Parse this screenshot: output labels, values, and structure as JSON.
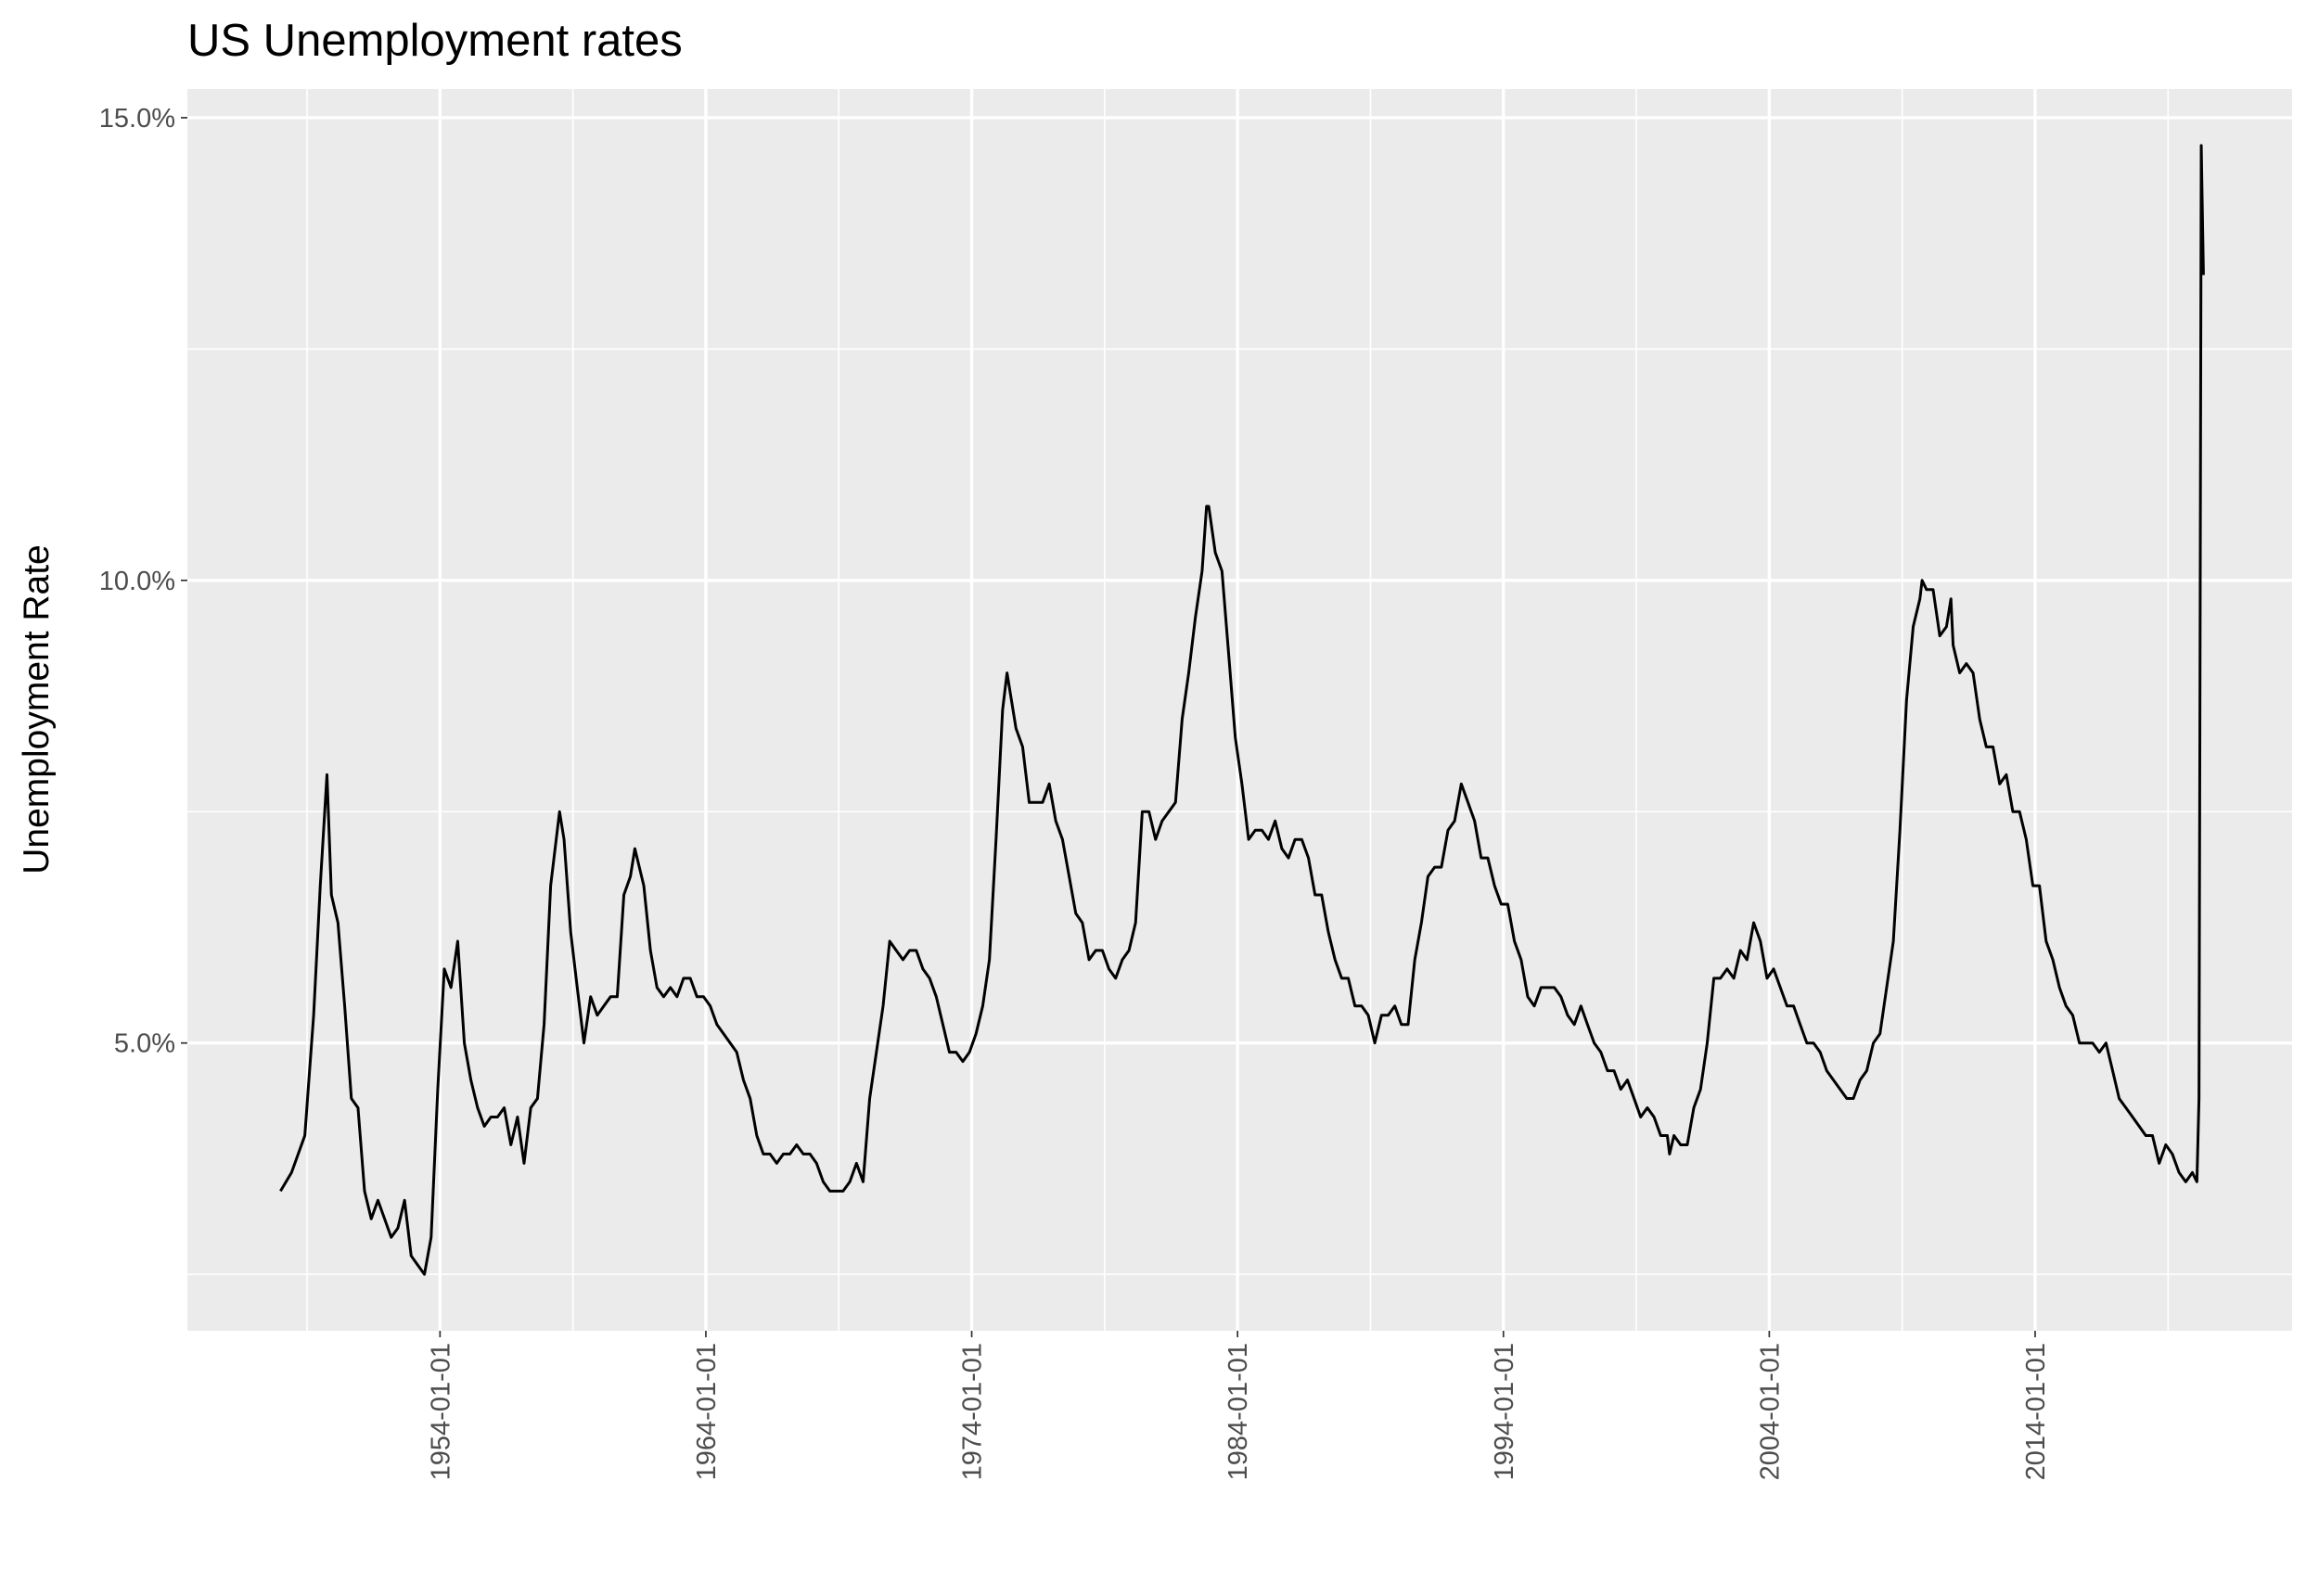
{
  "chart_data": {
    "type": "line",
    "title": "US Unemployment rates",
    "y_label": "Unemployment Rate",
    "color": "#000000",
    "grid": true,
    "xlim": [
      "1944-07-01",
      "2023-09-01"
    ],
    "xticks": [
      "1954-01-01",
      "1964-01-01",
      "1974-01-01",
      "1984-01-01",
      "1994-01-01",
      "2004-01-01",
      "2014-01-01"
    ],
    "xminorticks": [
      "1949-01-01",
      "1959-01-01",
      "1969-01-01",
      "1979-01-01",
      "1989-01-01",
      "1999-01-01",
      "2009-01-01",
      "2019-01-01"
    ],
    "ylim": [
      1.89,
      15.31
    ],
    "yticks": [
      {
        "value": 5,
        "label": "5.0%"
      },
      {
        "value": 10,
        "label": "10.0%"
      },
      {
        "value": 15,
        "label": "15.0%"
      }
    ],
    "yminorticks": [
      2.5,
      7.5,
      12.5
    ],
    "x": [
      "1948-01-01",
      "1948-06-01",
      "1948-12-01",
      "1949-04-01",
      "1949-07-01",
      "1949-10-01",
      "1949-12-01",
      "1950-03-01",
      "1950-06-01",
      "1950-09-01",
      "1950-12-01",
      "1951-03-01",
      "1951-06-01",
      "1951-09-01",
      "1951-12-01",
      "1952-03-01",
      "1952-06-01",
      "1952-09-01",
      "1952-12-01",
      "1953-03-01",
      "1953-06-01",
      "1953-09-01",
      "1953-12-01",
      "1954-03-01",
      "1954-06-01",
      "1954-09-01",
      "1954-12-01",
      "1955-03-01",
      "1955-06-01",
      "1955-09-01",
      "1955-12-01",
      "1956-03-01",
      "1956-06-01",
      "1956-09-01",
      "1956-12-01",
      "1957-03-01",
      "1957-06-01",
      "1957-09-01",
      "1957-12-01",
      "1958-03-01",
      "1958-07-01",
      "1958-09-01",
      "1958-12-01",
      "1959-03-01",
      "1959-06-01",
      "1959-09-01",
      "1959-12-01",
      "1960-03-01",
      "1960-06-01",
      "1960-09-01",
      "1960-12-01",
      "1961-03-01",
      "1961-05-01",
      "1961-09-01",
      "1961-12-01",
      "1962-03-01",
      "1962-06-01",
      "1962-09-01",
      "1962-12-01",
      "1963-03-01",
      "1963-06-01",
      "1963-09-01",
      "1963-12-01",
      "1964-03-01",
      "1964-06-01",
      "1964-09-01",
      "1964-12-01",
      "1965-03-01",
      "1965-06-01",
      "1965-09-01",
      "1965-12-01",
      "1966-03-01",
      "1966-06-01",
      "1966-09-01",
      "1966-12-01",
      "1967-03-01",
      "1967-06-01",
      "1967-09-01",
      "1967-12-01",
      "1968-03-01",
      "1968-06-01",
      "1968-09-01",
      "1968-12-01",
      "1969-03-01",
      "1969-06-01",
      "1969-09-01",
      "1969-12-01",
      "1970-03-01",
      "1970-06-01",
      "1970-09-01",
      "1970-12-01",
      "1971-03-01",
      "1971-06-01",
      "1971-09-01",
      "1971-12-01",
      "1972-03-01",
      "1972-06-01",
      "1972-09-01",
      "1972-12-01",
      "1973-03-01",
      "1973-06-01",
      "1973-09-01",
      "1973-12-01",
      "1974-03-01",
      "1974-06-01",
      "1974-09-01",
      "1974-12-01",
      "1975-03-01",
      "1975-05-01",
      "1975-09-01",
      "1975-12-01",
      "1976-03-01",
      "1976-06-01",
      "1976-09-01",
      "1976-12-01",
      "1977-03-01",
      "1977-06-01",
      "1977-09-01",
      "1977-12-01",
      "1978-03-01",
      "1978-06-01",
      "1978-09-01",
      "1978-12-01",
      "1979-03-01",
      "1979-06-01",
      "1979-09-01",
      "1979-12-01",
      "1980-03-01",
      "1980-06-01",
      "1980-09-01",
      "1980-12-01",
      "1981-03-01",
      "1981-06-01",
      "1981-09-01",
      "1981-12-01",
      "1982-03-01",
      "1982-06-01",
      "1982-09-01",
      "1982-11-01",
      "1982-12-01",
      "1983-03-01",
      "1983-06-01",
      "1983-09-01",
      "1983-12-01",
      "1984-03-01",
      "1984-06-01",
      "1984-09-01",
      "1984-12-01",
      "1985-03-01",
      "1985-06-01",
      "1985-09-01",
      "1985-12-01",
      "1986-03-01",
      "1986-06-01",
      "1986-09-01",
      "1986-12-01",
      "1987-03-01",
      "1987-06-01",
      "1987-09-01",
      "1987-12-01",
      "1988-03-01",
      "1988-06-01",
      "1988-09-01",
      "1988-12-01",
      "1989-03-01",
      "1989-06-01",
      "1989-09-01",
      "1989-12-01",
      "1990-03-01",
      "1990-06-01",
      "1990-09-01",
      "1990-12-01",
      "1991-03-01",
      "1991-06-01",
      "1991-09-01",
      "1991-12-01",
      "1992-03-01",
      "1992-06-01",
      "1992-09-01",
      "1992-12-01",
      "1993-03-01",
      "1993-06-01",
      "1993-09-01",
      "1993-12-01",
      "1994-03-01",
      "1994-06-01",
      "1994-09-01",
      "1994-12-01",
      "1995-03-01",
      "1995-06-01",
      "1995-09-01",
      "1995-12-01",
      "1996-03-01",
      "1996-06-01",
      "1996-09-01",
      "1996-12-01",
      "1997-03-01",
      "1997-06-01",
      "1997-09-01",
      "1997-12-01",
      "1998-03-01",
      "1998-06-01",
      "1998-09-01",
      "1998-12-01",
      "1999-03-01",
      "1999-06-01",
      "1999-09-01",
      "1999-12-01",
      "2000-03-01",
      "2000-04-01",
      "2000-06-01",
      "2000-09-01",
      "2000-12-01",
      "2001-03-01",
      "2001-06-01",
      "2001-09-01",
      "2001-12-01",
      "2002-03-01",
      "2002-06-01",
      "2002-09-01",
      "2002-12-01",
      "2003-03-01",
      "2003-06-01",
      "2003-09-01",
      "2003-12-01",
      "2004-03-01",
      "2004-06-01",
      "2004-09-01",
      "2004-12-01",
      "2005-03-01",
      "2005-06-01",
      "2005-09-01",
      "2005-12-01",
      "2006-03-01",
      "2006-06-01",
      "2006-09-01",
      "2006-12-01",
      "2007-03-01",
      "2007-06-01",
      "2007-09-01",
      "2007-12-01",
      "2008-03-01",
      "2008-06-01",
      "2008-09-01",
      "2008-12-01",
      "2009-03-01",
      "2009-06-01",
      "2009-09-01",
      "2009-10-01",
      "2009-12-01",
      "2010-03-01",
      "2010-06-01",
      "2010-09-01",
      "2010-11-01",
      "2010-12-01",
      "2011-03-01",
      "2011-06-01",
      "2011-09-01",
      "2011-12-01",
      "2012-03-01",
      "2012-06-01",
      "2012-09-01",
      "2012-12-01",
      "2013-03-01",
      "2013-06-01",
      "2013-09-01",
      "2013-12-01",
      "2014-03-01",
      "2014-06-01",
      "2014-09-01",
      "2014-12-01",
      "2015-03-01",
      "2015-06-01",
      "2015-09-01",
      "2015-12-01",
      "2016-03-01",
      "2016-06-01",
      "2016-09-01",
      "2016-12-01",
      "2017-03-01",
      "2017-06-01",
      "2017-09-01",
      "2017-12-01",
      "2018-03-01",
      "2018-06-01",
      "2018-09-01",
      "2018-12-01",
      "2019-03-01",
      "2019-06-01",
      "2019-09-01",
      "2019-12-01",
      "2020-02-01",
      "2020-03-01",
      "2020-04-01",
      "2020-05-01"
    ],
    "values": [
      3.4,
      3.6,
      4.0,
      5.3,
      6.7,
      7.9,
      6.6,
      6.3,
      5.4,
      4.4,
      4.3,
      3.4,
      3.1,
      3.3,
      3.1,
      2.9,
      3.0,
      3.3,
      2.7,
      2.6,
      2.5,
      2.9,
      4.5,
      5.8,
      5.6,
      6.1,
      5.0,
      4.6,
      4.3,
      4.1,
      4.2,
      4.2,
      4.3,
      3.9,
      4.2,
      3.7,
      4.3,
      4.4,
      5.2,
      6.7,
      7.5,
      7.2,
      6.2,
      5.6,
      5.0,
      5.5,
      5.3,
      5.4,
      5.5,
      5.5,
      6.6,
      6.8,
      7.1,
      6.7,
      6.0,
      5.6,
      5.5,
      5.6,
      5.5,
      5.7,
      5.7,
      5.5,
      5.5,
      5.4,
      5.2,
      5.1,
      5.0,
      4.9,
      4.6,
      4.4,
      4.0,
      3.8,
      3.8,
      3.7,
      3.8,
      3.8,
      3.9,
      3.8,
      3.8,
      3.7,
      3.5,
      3.4,
      3.4,
      3.4,
      3.5,
      3.7,
      3.5,
      4.4,
      4.9,
      5.4,
      6.1,
      6.0,
      5.9,
      6.0,
      6.0,
      5.8,
      5.7,
      5.5,
      5.2,
      4.9,
      4.9,
      4.8,
      4.9,
      5.1,
      5.4,
      5.9,
      7.2,
      8.6,
      9.0,
      8.4,
      8.2,
      7.6,
      7.6,
      7.6,
      7.8,
      7.4,
      7.2,
      6.8,
      6.4,
      6.3,
      5.9,
      6.0,
      6.0,
      5.8,
      5.7,
      5.9,
      6.0,
      6.3,
      7.5,
      7.5,
      7.2,
      7.4,
      7.5,
      7.6,
      8.5,
      9.0,
      9.6,
      10.1,
      10.8,
      10.8,
      10.3,
      10.1,
      9.2,
      8.3,
      7.8,
      7.2,
      7.3,
      7.3,
      7.2,
      7.4,
      7.1,
      7.0,
      7.2,
      7.2,
      7.0,
      6.6,
      6.6,
      6.2,
      5.9,
      5.7,
      5.7,
      5.4,
      5.4,
      5.3,
      5.0,
      5.3,
      5.3,
      5.4,
      5.2,
      5.2,
      5.9,
      6.3,
      6.8,
      6.9,
      6.9,
      7.3,
      7.4,
      7.8,
      7.6,
      7.4,
      7.0,
      7.0,
      6.7,
      6.5,
      6.5,
      6.1,
      5.9,
      5.5,
      5.4,
      5.6,
      5.6,
      5.6,
      5.5,
      5.3,
      5.2,
      5.4,
      5.2,
      5.0,
      4.9,
      4.7,
      4.7,
      4.5,
      4.6,
      4.4,
      4.2,
      4.3,
      4.2,
      4.0,
      4.0,
      3.8,
      4.0,
      3.9,
      3.9,
      4.3,
      4.5,
      5.0,
      5.7,
      5.7,
      5.8,
      5.7,
      6.0,
      5.9,
      6.3,
      6.1,
      5.7,
      5.8,
      5.6,
      5.4,
      5.4,
      5.2,
      5.0,
      5.0,
      4.9,
      4.7,
      4.6,
      4.5,
      4.4,
      4.4,
      4.6,
      4.7,
      5.0,
      5.1,
      5.6,
      6.1,
      7.3,
      8.7,
      9.5,
      9.8,
      10.0,
      9.9,
      9.9,
      9.4,
      9.5,
      9.8,
      9.3,
      9.0,
      9.1,
      9.0,
      8.5,
      8.2,
      8.2,
      7.8,
      7.9,
      7.5,
      7.5,
      7.2,
      6.7,
      6.7,
      6.1,
      5.9,
      5.6,
      5.4,
      5.3,
      5.0,
      5.0,
      5.0,
      4.9,
      5.0,
      4.7,
      4.4,
      4.3,
      4.2,
      4.1,
      4.0,
      4.0,
      3.7,
      3.9,
      3.8,
      3.6,
      3.5,
      3.6,
      3.5,
      4.4,
      14.7,
      13.3
    ]
  }
}
